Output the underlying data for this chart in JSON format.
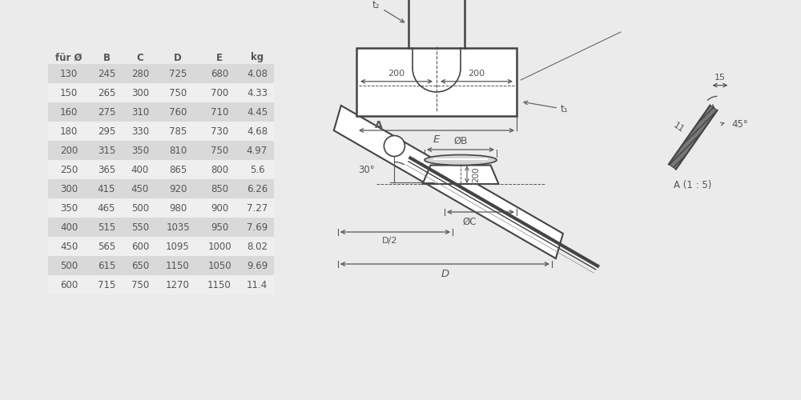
{
  "table_headers": [
    "für Ø",
    "B",
    "C",
    "D",
    "E",
    "kg"
  ],
  "table_data": [
    [
      130,
      245,
      280,
      725,
      680,
      "4.08"
    ],
    [
      150,
      265,
      300,
      750,
      700,
      "4.33"
    ],
    [
      160,
      275,
      310,
      760,
      710,
      "4.45"
    ],
    [
      180,
      295,
      330,
      785,
      730,
      "4.68"
    ],
    [
      200,
      315,
      350,
      810,
      750,
      "4.97"
    ],
    [
      250,
      365,
      400,
      865,
      800,
      "5.6"
    ],
    [
      300,
      415,
      450,
      920,
      850,
      "6.26"
    ],
    [
      350,
      465,
      500,
      980,
      900,
      "7.27"
    ],
    [
      400,
      515,
      550,
      1035,
      950,
      "7.69"
    ],
    [
      450,
      565,
      600,
      1095,
      1000,
      "8.02"
    ],
    [
      500,
      615,
      650,
      1150,
      1050,
      "9.69"
    ],
    [
      600,
      715,
      750,
      1270,
      1150,
      "11.4"
    ]
  ],
  "row_bg_shaded": "#d9d9d9",
  "row_bg_white": "#efefef",
  "text_color": "#555555",
  "line_color": "#444444",
  "dim_color": "#555555",
  "bg_color": "#ebebeb"
}
